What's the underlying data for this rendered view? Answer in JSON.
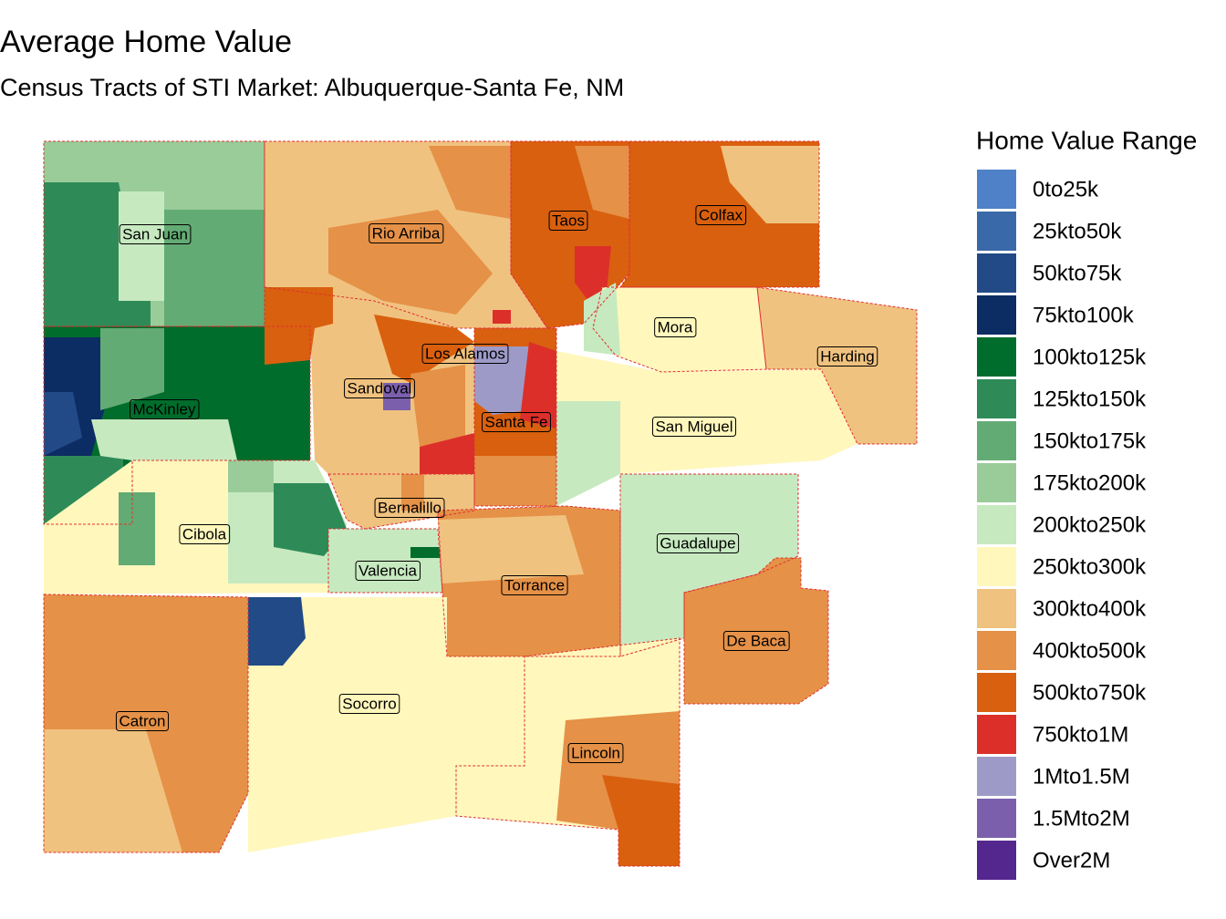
{
  "title": "Average Home Value",
  "subtitle": "Census Tracts of STI Market: Albuquerque-Santa Fe, NM",
  "legend": {
    "title": "Home Value Range",
    "items": [
      {
        "label": "0to25k",
        "color": "#4f81c9"
      },
      {
        "label": "25kto50k",
        "color": "#3a69aa"
      },
      {
        "label": "50kto75k",
        "color": "#224a87"
      },
      {
        "label": "75kto100k",
        "color": "#0c2c64"
      },
      {
        "label": "100kto125k",
        "color": "#006d2c"
      },
      {
        "label": "125kto150k",
        "color": "#2e8b57"
      },
      {
        "label": "150kto175k",
        "color": "#63ab74"
      },
      {
        "label": "175kto200k",
        "color": "#99cc99"
      },
      {
        "label": "200kto250k",
        "color": "#c7e9c0"
      },
      {
        "label": "250kto300k",
        "color": "#fff7bc"
      },
      {
        "label": "300kto400k",
        "color": "#f0c27f"
      },
      {
        "label": "400kto500k",
        "color": "#e59147"
      },
      {
        "label": "500kto750k",
        "color": "#d9600f"
      },
      {
        "label": "750kto1M",
        "color": "#dc2f2a"
      },
      {
        "label": "1Mto1.5M",
        "color": "#9e9ac8"
      },
      {
        "label": "1.5Mto2M",
        "color": "#7b5fad"
      },
      {
        "label": "Over2M",
        "color": "#54278f"
      }
    ]
  },
  "counties": [
    "San Juan",
    "Rio Arriba",
    "Taos",
    "Colfax",
    "Mora",
    "Harding",
    "Los Alamos",
    "Sandoval",
    "McKinley",
    "Santa Fe",
    "San Miguel",
    "Bernalillo",
    "Cibola",
    "Guadalupe",
    "Valencia",
    "Torrance",
    "De Baca",
    "Socorro",
    "Catron",
    "Lincoln"
  ]
}
